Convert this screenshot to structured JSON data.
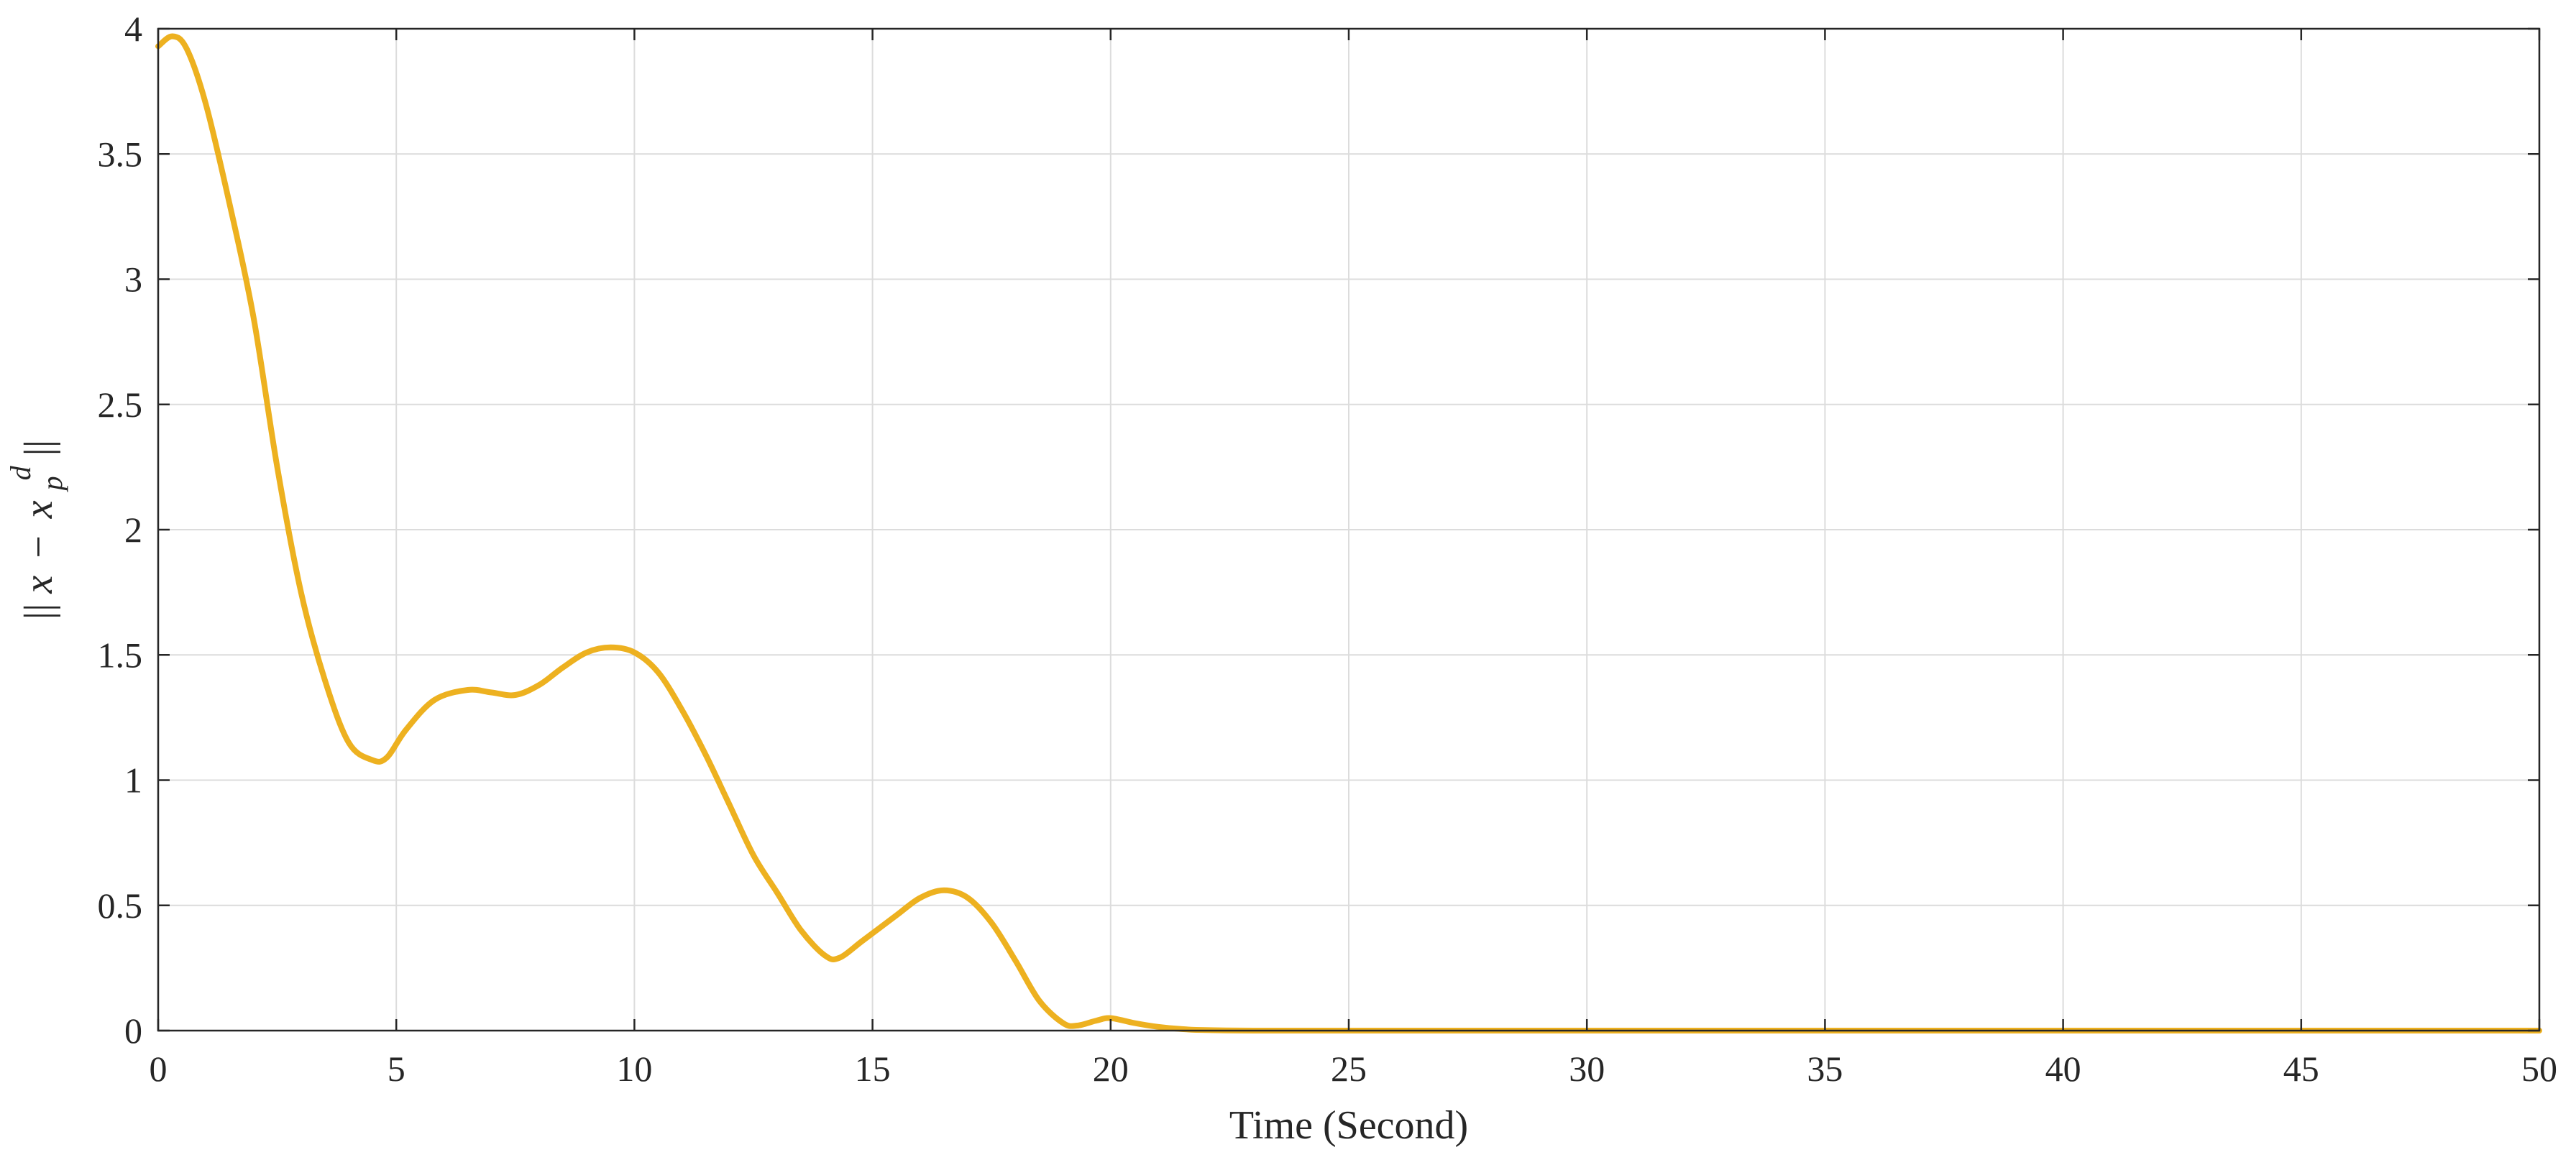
{
  "chart_data": {
    "type": "line",
    "title": "",
    "xlabel": "Time (Second)",
    "ylabel": "||x − x_p^d||",
    "ylabel_parts": {
      "left": "||",
      "var": "x",
      "op": "−",
      "var2": "x",
      "sub": "p",
      "sup": "d",
      "right": "||"
    },
    "xlim": [
      0,
      50
    ],
    "ylim": [
      0,
      4
    ],
    "xticks": [
      0,
      5,
      10,
      15,
      20,
      25,
      30,
      35,
      40,
      45,
      50
    ],
    "xtick_labels": [
      "0",
      "5",
      "10",
      "15",
      "20",
      "25",
      "30",
      "35",
      "40",
      "45",
      "50"
    ],
    "yticks": [
      0,
      0.5,
      1,
      1.5,
      2,
      2.5,
      3,
      3.5,
      4
    ],
    "ytick_labels": [
      "0",
      "0.5",
      "1",
      "1.5",
      "2",
      "2.5",
      "3",
      "3.5",
      "4"
    ],
    "grid": true,
    "legend": false,
    "colors": {
      "series": "#EDB120",
      "axis": "#262626",
      "grid": "#dcdcdc"
    },
    "series": [
      {
        "color": "#EDB120",
        "x": [
          0,
          0.3,
          0.6,
          1.0,
          1.5,
          2.0,
          2.5,
          3.0,
          3.5,
          4.0,
          4.5,
          4.8,
          5.2,
          5.8,
          6.5,
          7.0,
          7.5,
          8.0,
          8.5,
          9.0,
          9.5,
          10.0,
          10.5,
          11.0,
          11.5,
          12.0,
          12.5,
          13.0,
          13.5,
          14.0,
          14.3,
          14.8,
          15.5,
          16.0,
          16.5,
          17.0,
          17.5,
          18.0,
          18.5,
          19.0,
          19.3,
          19.7,
          20.0,
          20.5,
          21.0,
          21.5,
          22.0,
          23.0,
          25.0,
          30.0,
          35.0,
          40.0,
          45.0,
          50.0
        ],
        "y": [
          3.93,
          3.97,
          3.92,
          3.7,
          3.3,
          2.85,
          2.25,
          1.75,
          1.4,
          1.15,
          1.08,
          1.09,
          1.2,
          1.32,
          1.36,
          1.35,
          1.34,
          1.38,
          1.45,
          1.51,
          1.53,
          1.51,
          1.43,
          1.28,
          1.1,
          0.9,
          0.7,
          0.55,
          0.4,
          0.3,
          0.29,
          0.36,
          0.46,
          0.53,
          0.56,
          0.53,
          0.43,
          0.28,
          0.12,
          0.03,
          0.02,
          0.04,
          0.05,
          0.03,
          0.015,
          0.006,
          0.002,
          0.0,
          0.0,
          0.0,
          0.0,
          0.0,
          0.0,
          0.0
        ]
      }
    ]
  }
}
